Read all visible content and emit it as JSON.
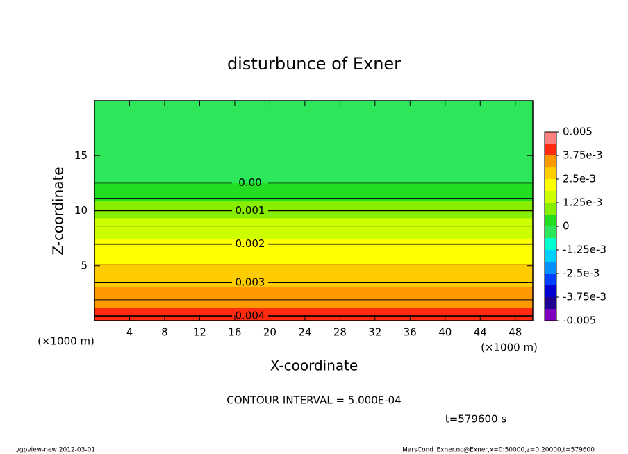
{
  "chart_data": {
    "type": "contour",
    "title": "disturbunce of Exner",
    "xlabel": "X-coordinate",
    "ylabel": "Z-coordinate",
    "xunit": "(×1000 m)",
    "yunit": "(×1000 m)",
    "xlim": [
      0,
      50
    ],
    "xticks": [
      4,
      8,
      12,
      16,
      20,
      24,
      28,
      32,
      36,
      40,
      44,
      48
    ],
    "ylim": [
      0,
      20
    ],
    "yticks": [
      5,
      10,
      15
    ],
    "bottom_value": 0.0042,
    "top_value": -0.0004,
    "contours": [
      {
        "value": 0.004,
        "z": 0.44,
        "label": "0.004"
      },
      {
        "value": 0.0035,
        "z": 1.9
      },
      {
        "value": 0.003,
        "z": 3.48,
        "label": "0.003"
      },
      {
        "value": 0.0025,
        "z": 5.13
      },
      {
        "value": 0.002,
        "z": 6.96,
        "label": "0.002"
      },
      {
        "value": 0.0015,
        "z": 8.6
      },
      {
        "value": 0.001,
        "z": 10.0,
        "label": "0.001"
      },
      {
        "value": 0.0005,
        "z": 11.14
      },
      {
        "value": 0,
        "z": 12.53,
        "label": "0.00"
      }
    ],
    "colorbar": {
      "levels": [
        -0.005,
        -0.004375,
        -0.00375,
        -0.003125,
        -0.0025,
        -0.001875,
        -0.00125,
        -0.000625,
        0,
        0.000625,
        0.00125,
        0.001875,
        0.0025,
        0.003125,
        0.00375,
        0.004375,
        0.005
      ],
      "colors": [
        "#8000c0",
        "#200090",
        "#0000d0",
        "#0040ff",
        "#0090ff",
        "#00d0ff",
        "#00ffd0",
        "#2de65a",
        "#22dd22",
        "#88ee00",
        "#ccff00",
        "#ffff00",
        "#ffcc00",
        "#ff9900",
        "#ff2a10",
        "#ff8080"
      ],
      "ticks": [
        {
          "value": 0.005,
          "label": "0.005"
        },
        {
          "value": 0.00375,
          "label": "3.75e-3"
        },
        {
          "value": 0.0025,
          "label": "2.5e-3"
        },
        {
          "value": 0.00125,
          "label": "1.25e-3"
        },
        0,
        {
          "value": -0.00125,
          "label": "-1.25e-3"
        },
        {
          "value": -0.0025,
          "label": "-2.5e-3"
        },
        {
          "value": -0.00375,
          "label": "-3.75e-3"
        },
        -0.005
      ]
    },
    "contour_interval": "CONTOUR INTERVAL = 5.000E-04",
    "time": "t=579600 s",
    "footer_left": "./gpview-new  2012-03-01",
    "footer_right": "MarsCond_Exner.nc@Exner,x=0:50000,z=0:20000,t=579600"
  }
}
